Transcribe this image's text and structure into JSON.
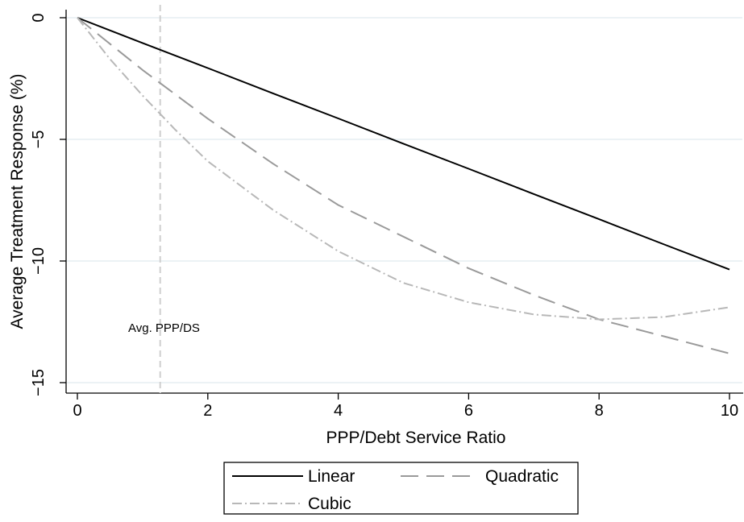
{
  "chart_data": {
    "type": "line",
    "xlabel": "PPP/Debt Service Ratio",
    "ylabel": "Average Treatment Response (%)",
    "xlim": [
      0,
      10
    ],
    "ylim": [
      -15.5,
      0.3
    ],
    "x_ticks": [
      "0",
      "2",
      "4",
      "6",
      "8",
      "10"
    ],
    "y_ticks": [
      "0",
      "−5",
      "−10",
      "−15"
    ],
    "grid": "horizontal",
    "legend_position": "bottom",
    "annotation": {
      "text": "Avg. PPP/DS",
      "x_value": 1.27
    },
    "series": [
      {
        "name": "Linear",
        "style": "solid",
        "color": "#000000",
        "x": [
          0,
          1,
          2,
          3,
          4,
          5,
          6,
          7,
          8,
          9,
          10
        ],
        "y": [
          0,
          -1.04,
          -2.07,
          -3.11,
          -4.14,
          -5.18,
          -6.21,
          -7.25,
          -8.28,
          -9.32,
          -10.35
        ]
      },
      {
        "name": "Quadratic",
        "style": "dashed",
        "color": "#9a9a9a",
        "x": [
          0,
          1,
          2,
          3,
          4,
          5,
          6,
          7,
          8,
          9,
          10
        ],
        "y": [
          0,
          -2.15,
          -4.15,
          -6.0,
          -7.7,
          -9.0,
          -10.3,
          -11.4,
          -12.4,
          -13.1,
          -13.8
        ]
      },
      {
        "name": "Cubic",
        "style": "dash-dot",
        "color": "#b8b8b8",
        "x": [
          0,
          0.5,
          1,
          1.5,
          2,
          3,
          4,
          5,
          6,
          7,
          8,
          9,
          10
        ],
        "y": [
          0,
          -1.7,
          -3.2,
          -4.6,
          -5.9,
          -7.9,
          -9.6,
          -10.9,
          -11.7,
          -12.2,
          -12.4,
          -12.3,
          -11.9
        ]
      }
    ]
  }
}
